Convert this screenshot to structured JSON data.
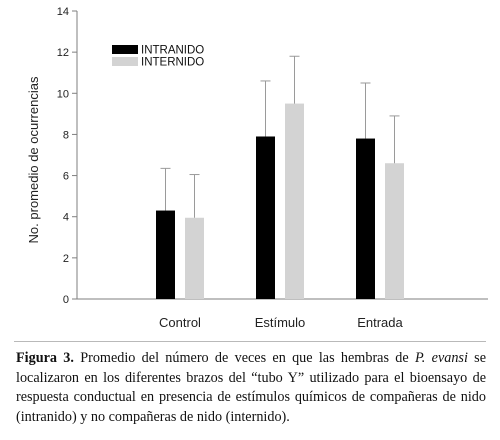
{
  "chart_data": {
    "type": "bar",
    "title": "",
    "xlabel": "",
    "ylabel": "No. promedio de ocurrencias",
    "ylim": [
      0,
      14
    ],
    "yticks": [
      0,
      2,
      4,
      6,
      8,
      10,
      12,
      14
    ],
    "categories": [
      "Control",
      "Estímulo",
      "Entrada"
    ],
    "series": [
      {
        "name": "INTRANIDO",
        "color": "#000000",
        "values": [
          4.3,
          7.9,
          7.8
        ],
        "error": [
          2.05,
          2.7,
          2.7
        ]
      },
      {
        "name": "INTERNIDO",
        "color": "#d3d3d3",
        "values": [
          3.95,
          9.5,
          6.6
        ],
        "error": [
          2.1,
          2.3,
          2.3
        ]
      }
    ],
    "legend_position": "top-left",
    "grid": false,
    "error_bars": "upper"
  },
  "caption": {
    "label": "Figura 3.",
    "text_before": " Promedio del número de veces en que las hembras de ",
    "species": "P. evansi",
    "text_after": " se localizaron en los diferentes brazos del “tubo Y” utilizado para el bioensayo de respuesta conductual en presencia de estímulos químicos de compañeras de nido (intranido) y no compañeras de nido (internido)."
  }
}
